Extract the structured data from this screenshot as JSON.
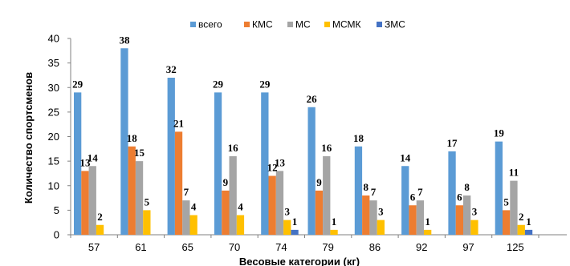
{
  "chart_data": {
    "type": "bar",
    "title": "",
    "xlabel": "Весовые категории (кг)",
    "ylabel": "Количество спортсменов",
    "ylim": [
      0,
      40
    ],
    "yticks": [
      0,
      5,
      10,
      15,
      20,
      25,
      30,
      35,
      40
    ],
    "grid": false,
    "legend_position": "top",
    "categories": [
      "57",
      "61",
      "65",
      "70",
      "74",
      "79",
      "86",
      "92",
      "97",
      "125"
    ],
    "series": [
      {
        "name": "всего",
        "color": "#5B9BD5",
        "values": [
          29,
          38,
          32,
          29,
          29,
          26,
          18,
          14,
          17,
          19
        ]
      },
      {
        "name": "КМС",
        "color": "#ED7D31",
        "values": [
          13,
          18,
          21,
          9,
          12,
          9,
          8,
          6,
          6,
          5
        ]
      },
      {
        "name": "МС",
        "color": "#A5A5A5",
        "values": [
          14,
          15,
          7,
          16,
          13,
          16,
          7,
          7,
          8,
          11
        ]
      },
      {
        "name": "МСМК",
        "color": "#FFC000",
        "values": [
          2,
          5,
          4,
          4,
          3,
          1,
          3,
          1,
          3,
          2
        ]
      },
      {
        "name": "ЗМС",
        "color": "#4472C4",
        "values": [
          0,
          0,
          0,
          0,
          1,
          0,
          0,
          0,
          0,
          1
        ]
      }
    ],
    "data_labels": [
      [
        29,
        13,
        14,
        2,
        null
      ],
      [
        38,
        18,
        15,
        5,
        null
      ],
      [
        32,
        21,
        7,
        4,
        null
      ],
      [
        29,
        9,
        16,
        4,
        null
      ],
      [
        29,
        12,
        13,
        3,
        1
      ],
      [
        26,
        9,
        16,
        1,
        null
      ],
      [
        18,
        8,
        7,
        3,
        null
      ],
      [
        14,
        6,
        7,
        1,
        null
      ],
      [
        17,
        6,
        8,
        3,
        null
      ],
      [
        19,
        5,
        11,
        2,
        1
      ]
    ]
  }
}
